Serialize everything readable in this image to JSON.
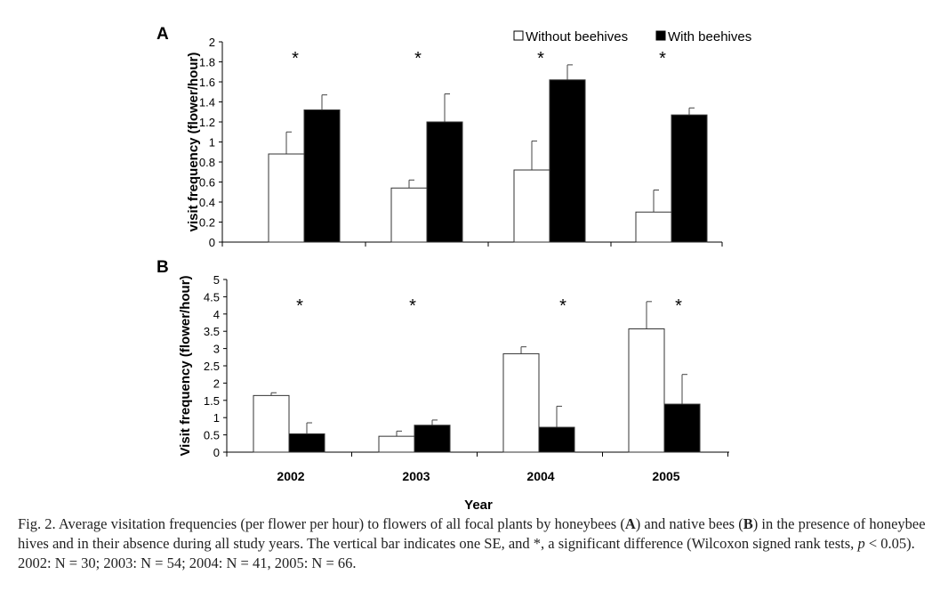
{
  "chart_data": [
    {
      "type": "bar",
      "panel": "A",
      "categories": [
        "2002",
        "2003",
        "2004",
        "2005"
      ],
      "ylabel": "visit frequency (flower/hour)",
      "ylim": [
        0,
        2
      ],
      "yticks": [
        "0",
        "0.2",
        "0.4",
        "0.6",
        "0.8",
        "1",
        "1.2",
        "1.4",
        "1.6",
        "1.8",
        "2"
      ],
      "show_xtick_labels": false,
      "legend": {
        "placement": "top-right",
        "entries": [
          "Without beehives",
          "With beehives"
        ]
      },
      "series": [
        {
          "name": "Without beehives",
          "color": "#ffffff",
          "values": [
            0.88,
            0.54,
            0.72,
            0.3
          ],
          "se": [
            0.22,
            0.08,
            0.29,
            0.22
          ]
        },
        {
          "name": "With beehives",
          "color": "#000000",
          "values": [
            1.32,
            1.2,
            1.62,
            1.27
          ],
          "se": [
            0.15,
            0.28,
            0.15,
            0.07
          ]
        }
      ],
      "significance_marker": "*",
      "significant": [
        true,
        true,
        true,
        true
      ]
    },
    {
      "type": "bar",
      "panel": "B",
      "categories": [
        "2002",
        "2003",
        "2004",
        "2005"
      ],
      "xlabel": "Year",
      "ylabel": "Visit frequency (flower/hour)",
      "ylim": [
        0,
        5
      ],
      "yticks": [
        "0",
        "0.5",
        "1",
        "1.5",
        "2",
        "2.5",
        "3",
        "3.5",
        "4",
        "4.5",
        "5"
      ],
      "series": [
        {
          "name": "Without beehives",
          "color": "#ffffff",
          "values": [
            1.64,
            0.46,
            2.85,
            3.57
          ],
          "se": [
            0.08,
            0.15,
            0.2,
            0.79
          ]
        },
        {
          "name": "With beehives",
          "color": "#000000",
          "values": [
            0.53,
            0.78,
            0.72,
            1.39
          ],
          "se": [
            0.32,
            0.15,
            0.61,
            0.86
          ]
        }
      ],
      "significance_marker": "*",
      "significant": [
        true,
        true,
        true,
        true
      ]
    }
  ],
  "caption": {
    "part1": "Fig. 2. Average visitation frequencies (per flower per hour) to flowers of all focal plants by honeybees (",
    "a": "A",
    "part2": ") and native bees (",
    "b": "B",
    "part3": ") in the presence of honeybee hives and in their absence during all study years. The vertical bar indicates one SE, and *, a significant difference (Wilcoxon signed rank tests, ",
    "p": "p",
    "part4": " < 0.05). 2002: N = 30; 2003: N = 54; 2004: N = 41, 2005: N = 66."
  }
}
